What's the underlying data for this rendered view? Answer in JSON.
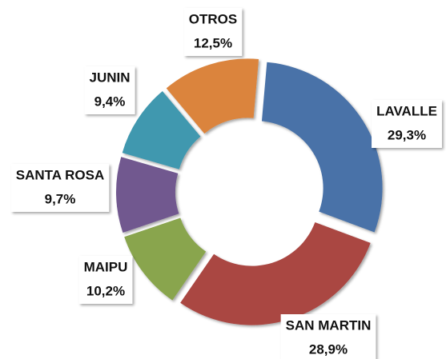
{
  "chart_data": {
    "type": "donut",
    "categories": [
      "LAVALLE",
      "SAN MARTIN",
      "MAIPU",
      "SANTA ROSA",
      "JUNIN",
      "OTROS"
    ],
    "values": [
      29.3,
      28.9,
      10.2,
      9.7,
      9.4,
      12.5
    ],
    "value_labels": [
      "29,3%",
      "28,9%",
      "10,2%",
      "9,7%",
      "9,4%",
      "12,5%"
    ],
    "colors": [
      "#4a72a8",
      "#aa4643",
      "#89a54e",
      "#71588f",
      "#4198af",
      "#db843d"
    ]
  }
}
